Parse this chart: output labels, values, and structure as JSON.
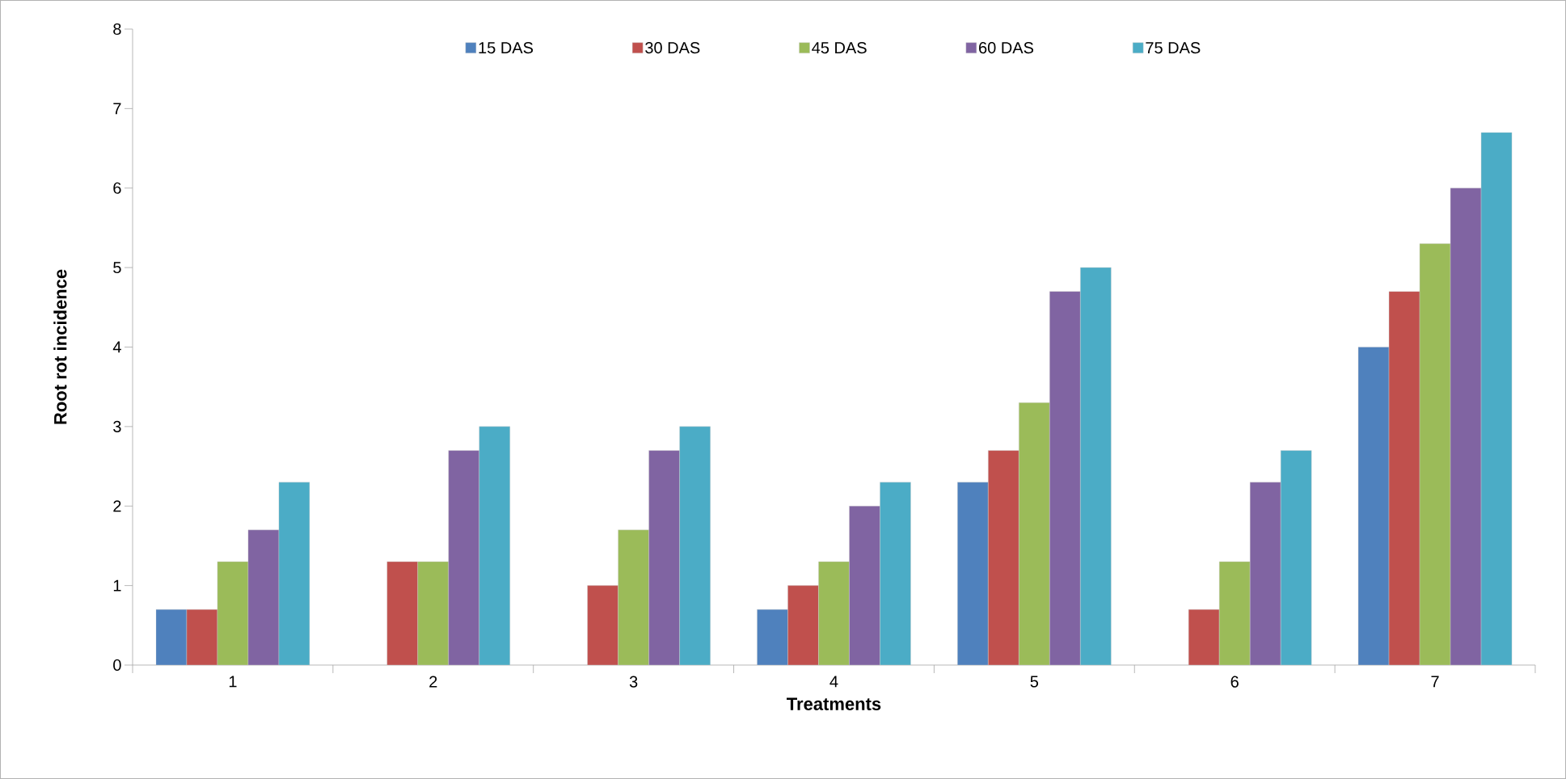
{
  "chart_data": {
    "type": "bar",
    "xlabel": "Treatments",
    "ylabel": "Root rot incidence",
    "categories": [
      "1",
      "2",
      "3",
      "4",
      "5",
      "6",
      "7"
    ],
    "series": [
      {
        "name": "15 DAS",
        "color": "#4f81bd",
        "values": [
          0.7,
          null,
          null,
          0.7,
          2.3,
          null,
          4.0
        ]
      },
      {
        "name": "30 DAS",
        "color": "#c0504d",
        "values": [
          0.7,
          1.3,
          1.0,
          1.0,
          2.7,
          0.7,
          4.7
        ]
      },
      {
        "name": "45 DAS",
        "color": "#9bbb59",
        "values": [
          1.3,
          1.3,
          1.7,
          1.3,
          3.3,
          1.3,
          5.3
        ]
      },
      {
        "name": "60 DAS",
        "color": "#8064a2",
        "values": [
          1.7,
          2.7,
          2.7,
          2.0,
          4.7,
          2.3,
          6.0
        ]
      },
      {
        "name": "75 DAS",
        "color": "#4bacc6",
        "values": [
          2.3,
          3.0,
          3.0,
          2.3,
          5.0,
          2.7,
          6.7
        ]
      }
    ],
    "ylim": [
      0,
      8
    ],
    "yticks": [
      0,
      1,
      2,
      3,
      4,
      5,
      6,
      7,
      8
    ],
    "grid": false,
    "legend": "top"
  }
}
